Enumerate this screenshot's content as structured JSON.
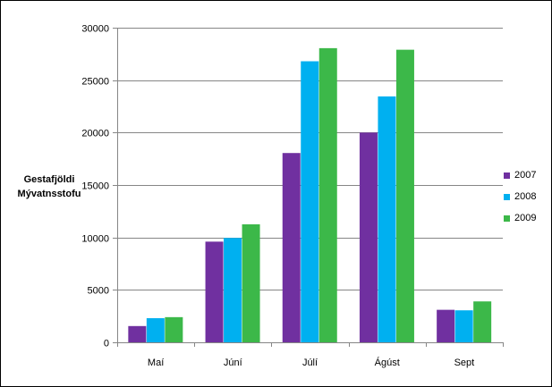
{
  "chart_data": {
    "type": "bar",
    "ylabel_lines": [
      "Gestafjöldi",
      "Mývatnsstofu"
    ],
    "xlabel": "",
    "categories": [
      "Maí",
      "Júní",
      "Júlí",
      "Ágúst",
      "Sept"
    ],
    "series": [
      {
        "name": "2007",
        "color": "#7030a0",
        "values": [
          1550,
          9600,
          18050,
          20000,
          3100
        ]
      },
      {
        "name": "2008",
        "color": "#00b0f0",
        "values": [
          2300,
          9950,
          26800,
          23450,
          3050
        ]
      },
      {
        "name": "2009",
        "color": "#3cb849",
        "values": [
          2400,
          11250,
          28050,
          27900,
          3900
        ]
      }
    ],
    "ylim": [
      0,
      30000
    ],
    "yticks": [
      0,
      5000,
      10000,
      15000,
      20000,
      25000,
      30000
    ],
    "grid": true,
    "legend_position": "right"
  }
}
